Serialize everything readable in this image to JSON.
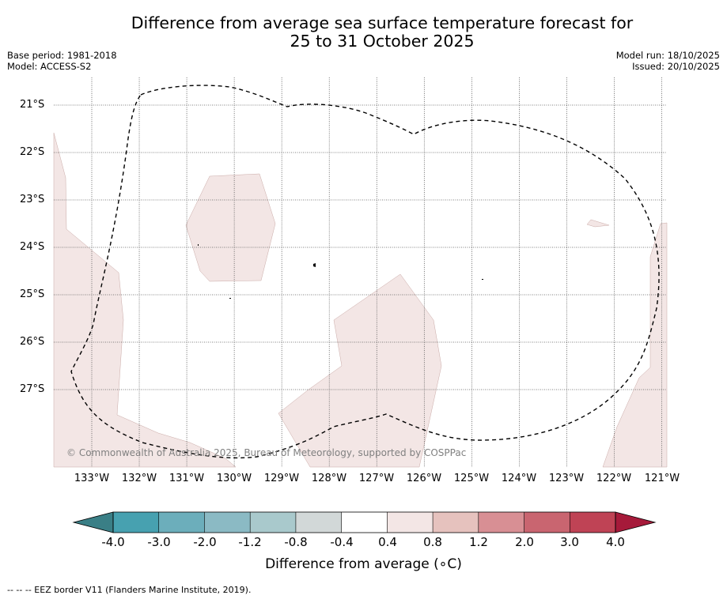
{
  "title": {
    "line1": "Difference from average sea surface temperature forecast for",
    "line2": "25 to 31 October 2025"
  },
  "meta_left": {
    "line1": "Base period: 1981-2018",
    "line2": "Model: ACCESS-S2"
  },
  "meta_right": {
    "line1": "Model run: 18/10/2025",
    "line2": "Issued: 20/10/2025"
  },
  "map": {
    "lat_labels": [
      "21°S",
      "22°S",
      "23°S",
      "24°S",
      "25°S",
      "26°S",
      "27°S"
    ],
    "lon_labels": [
      "133°W",
      "132°W",
      "131°W",
      "130°W",
      "129°W",
      "128°W",
      "127°W",
      "126°W",
      "125°W",
      "124°W",
      "123°W",
      "122°W",
      "121°W"
    ],
    "copyright": "© Commonwealth of Australia 2025, Bureau of Meteorology, supported by COSPPac",
    "anomaly_fill_color": "#f3e6e5",
    "eez_line_color": "#000000"
  },
  "colorbar": {
    "tick_labels": [
      "-4.0",
      "-3.0",
      "-2.0",
      "-1.2",
      "-0.8",
      "-0.4",
      "0.4",
      "0.8",
      "1.2",
      "2.0",
      "3.0",
      "4.0"
    ],
    "colors": [
      "#47a1b0",
      "#6caebb",
      "#8bbac4",
      "#a9c9cc",
      "#d2d8d8",
      "#ffffff",
      "#f3e6e5",
      "#e6c2be",
      "#d88f94",
      "#c96570",
      "#bf4355"
    ],
    "low_extend_color": "#3a7f86",
    "high_extend_color": "#a61a3a",
    "title": "Difference from average (∘C)"
  },
  "footnote": "--  --  -- EEZ border V11 (Flanders Marine Institute, 2019)."
}
